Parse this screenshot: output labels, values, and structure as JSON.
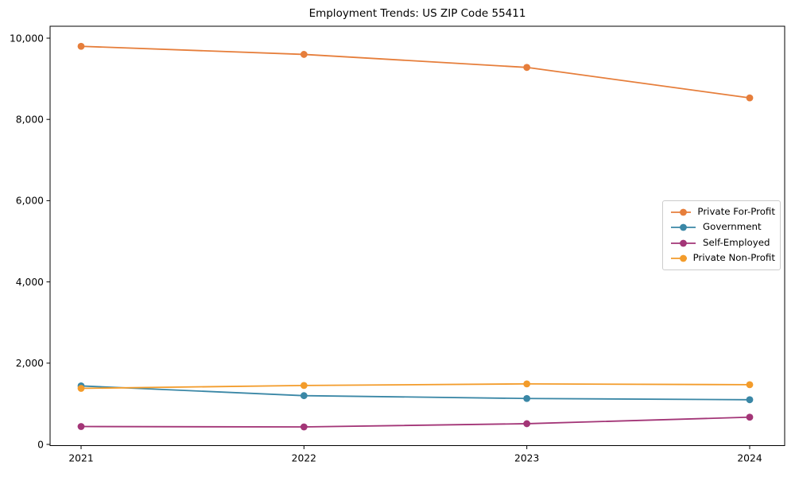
{
  "chart_data": {
    "type": "line",
    "title": "Employment Trends: US ZIP Code 55411",
    "xlabel": "",
    "ylabel": "",
    "x": [
      2021,
      2022,
      2023,
      2024
    ],
    "x_tick_labels": [
      "2021",
      "2022",
      "2023",
      "2024"
    ],
    "y_ticks": [
      0,
      2000,
      4000,
      6000,
      8000,
      10000
    ],
    "y_tick_labels": [
      "0",
      "2,000",
      "4,000",
      "6,000",
      "8,000",
      "10,000"
    ],
    "ylim": [
      -30,
      10300
    ],
    "grid": false,
    "legend_position": "center right",
    "series": [
      {
        "name": "Private For-Profit",
        "color": "#E67E3B",
        "values": [
          9800,
          9600,
          9280,
          8530
        ]
      },
      {
        "name": "Government",
        "color": "#3A87A6",
        "values": [
          1440,
          1200,
          1130,
          1100
        ]
      },
      {
        "name": "Self-Employed",
        "color": "#A33577",
        "values": [
          440,
          430,
          510,
          670
        ]
      },
      {
        "name": "Private Non-Profit",
        "color": "#F39C2B",
        "values": [
          1380,
          1450,
          1490,
          1470
        ]
      }
    ]
  }
}
